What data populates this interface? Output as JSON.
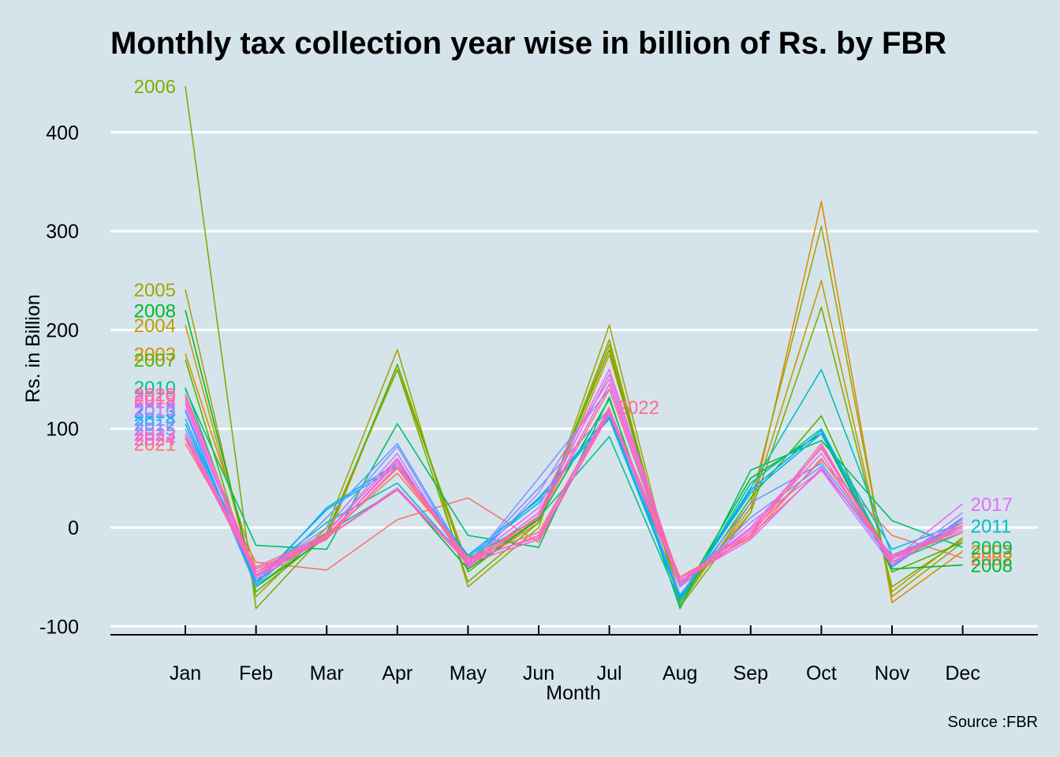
{
  "chart_data": {
    "type": "line",
    "title": "Monthly tax collection year wise in billion of Rs. by FBR",
    "xlabel": "Month",
    "ylabel": "Rs. in Billion",
    "caption": "Source :FBR",
    "categories": [
      "Jan",
      "Feb",
      "Mar",
      "Apr",
      "May",
      "Jun",
      "Jul",
      "Aug",
      "Sep",
      "Oct",
      "Nov",
      "Dec"
    ],
    "ylim": [
      -100,
      450
    ],
    "yticks": [
      -100,
      0,
      100,
      200,
      300,
      400
    ],
    "grid": "horizontal",
    "legend": "none",
    "series": [
      {
        "name": "2002",
        "color": "#f8766d",
        "label_side": "end",
        "values": [
          95,
          -35,
          -43,
          8,
          30,
          -15,
          118,
          -60,
          -5,
          68,
          -8,
          -31
        ]
      },
      {
        "name": "2003",
        "color": "#de8c00",
        "label_side": "both",
        "values": [
          176,
          -42,
          -12,
          165,
          -42,
          5,
          175,
          -70,
          15,
          330,
          -76,
          -24
        ]
      },
      {
        "name": "2004",
        "color": "#c49a00",
        "label_side": "start",
        "values": [
          205,
          -60,
          -5,
          160,
          -38,
          8,
          185,
          -75,
          20,
          250,
          -65,
          -10
        ]
      },
      {
        "name": "2005",
        "color": "#a3a500",
        "label_side": "start",
        "values": [
          241,
          -70,
          0,
          180,
          -60,
          0,
          205,
          -78,
          25,
          305,
          -70,
          -15
        ]
      },
      {
        "name": "2006",
        "color": "#7cae00",
        "label_side": "start",
        "values": [
          447,
          -82,
          -5,
          160,
          -55,
          5,
          190,
          -80,
          15,
          223,
          -60,
          -12
        ]
      },
      {
        "name": "2007",
        "color": "#53b400",
        "label_side": "start",
        "values": [
          170,
          -65,
          -8,
          165,
          -45,
          10,
          180,
          -75,
          30,
          113,
          -45,
          -15
        ]
      },
      {
        "name": "2008",
        "color": "#00b82a",
        "label_side": "both",
        "values": [
          220,
          -60,
          -10,
          40,
          -42,
          8,
          130,
          -72,
          50,
          95,
          -42,
          -38
        ]
      },
      {
        "name": "2009",
        "color": "#00be67",
        "label_side": "end",
        "values": [
          140,
          -18,
          -22,
          105,
          -8,
          -20,
          132,
          -82,
          58,
          88,
          7,
          -20
        ]
      },
      {
        "name": "2010",
        "color": "#00c19a",
        "label_side": "start",
        "values": [
          142,
          -55,
          -5,
          38,
          -32,
          10,
          92,
          -75,
          45,
          100,
          -35,
          -5
        ]
      },
      {
        "name": "2011",
        "color": "#00bfc4",
        "label_side": "end",
        "values": [
          110,
          -50,
          5,
          45,
          -35,
          30,
          110,
          -72,
          40,
          160,
          -28,
          2
        ]
      },
      {
        "name": "2012",
        "color": "#00b8e7",
        "label_side": "start",
        "values": [
          105,
          -55,
          18,
          62,
          -30,
          25,
          112,
          -70,
          35,
          95,
          -22,
          5
        ]
      },
      {
        "name": "2013",
        "color": "#00a9ff",
        "label_side": "start",
        "values": [
          118,
          -58,
          20,
          65,
          -28,
          28,
          115,
          -72,
          38,
          98,
          -40,
          10
        ]
      },
      {
        "name": "2014",
        "color": "#619cff",
        "label_side": "start",
        "values": [
          110,
          -60,
          10,
          85,
          -35,
          40,
          120,
          -68,
          25,
          65,
          -30,
          5
        ]
      },
      {
        "name": "2015",
        "color": "#8494ff",
        "label_side": "start",
        "values": [
          100,
          -50,
          0,
          82,
          -38,
          50,
          140,
          -60,
          10,
          62,
          -35,
          0
        ]
      },
      {
        "name": "2016",
        "color": "#c77cff",
        "label_side": "start",
        "values": [
          120,
          -48,
          -5,
          75,
          -40,
          35,
          150,
          -58,
          5,
          58,
          -38,
          15
        ]
      },
      {
        "name": "2017",
        "color": "#e76bf3",
        "label_side": "end",
        "values": [
          125,
          -52,
          -10,
          68,
          -35,
          20,
          160,
          -55,
          0,
          80,
          -33,
          24
        ]
      },
      {
        "name": "2018",
        "color": "#f564e3",
        "label_side": "start",
        "values": [
          128,
          -50,
          -8,
          65,
          -38,
          15,
          155,
          -55,
          -2,
          75,
          -35,
          8
        ]
      },
      {
        "name": "2019",
        "color": "#ff61c3",
        "label_side": "start",
        "values": [
          132,
          -45,
          -5,
          70,
          -40,
          12,
          145,
          -52,
          -5,
          85,
          -38,
          5
        ]
      },
      {
        "name": "2020",
        "color": "#ff6c91",
        "label_side": "start",
        "values": [
          135,
          -48,
          -10,
          60,
          -35,
          10,
          140,
          -55,
          -8,
          82,
          -32,
          2
        ]
      },
      {
        "name": "2021",
        "color": "#f8766d",
        "label_side": "start",
        "values": [
          85,
          -40,
          -8,
          55,
          -30,
          -5,
          120,
          -50,
          -10,
          70,
          -30,
          -5
        ]
      },
      {
        "name": "2022",
        "color": "#ff6c91",
        "label_side": "end",
        "values": [
          92,
          -45,
          -12,
          62,
          -32,
          -10,
          122,
          null,
          null,
          null,
          null,
          null
        ]
      },
      {
        "name": "2023",
        "color": "#e76bf3",
        "label_side": "start",
        "values": [
          95,
          -42,
          -10,
          40,
          -34,
          -8,
          118,
          -54,
          -12,
          60,
          -30,
          0
        ]
      },
      {
        "name": "2024",
        "color": "#ff61c3",
        "label_side": "start",
        "values": [
          90,
          -48,
          -10,
          38,
          -36,
          -12,
          115,
          -56,
          -8,
          58,
          -28,
          -3
        ]
      }
    ]
  }
}
